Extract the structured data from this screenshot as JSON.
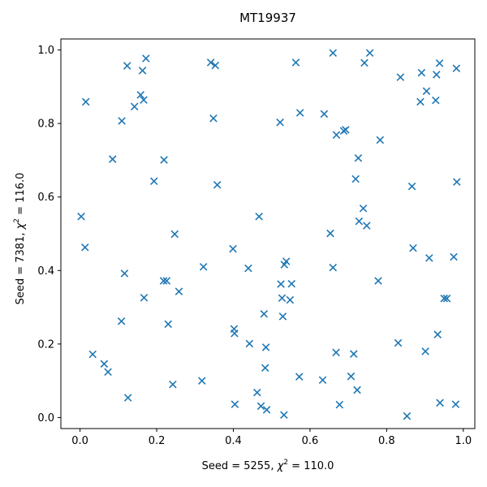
{
  "chart_data": {
    "type": "scatter",
    "title": "MT19937",
    "xlabel": {
      "prefix": "Seed = 5255, ",
      "chi": "χ",
      "sup": "2",
      "suffix": " = 110.0"
    },
    "ylabel": {
      "prefix": "Seed = 7381, ",
      "chi": "χ",
      "sup": "2",
      "suffix": " = 116.0"
    },
    "xlim": [
      -0.05,
      1.03
    ],
    "ylim": [
      -0.03,
      1.03
    ],
    "xticks": [
      0.0,
      0.2,
      0.4,
      0.6,
      0.8,
      1.0
    ],
    "yticks": [
      0.0,
      0.2,
      0.4,
      0.6,
      0.8,
      1.0
    ],
    "xtick_labels": [
      "0.0",
      "0.2",
      "0.4",
      "0.6",
      "0.8",
      "1.0"
    ],
    "ytick_labels": [
      "0.0",
      "0.2",
      "0.4",
      "0.6",
      "0.8",
      "1.0"
    ],
    "marker": "x",
    "color": "#1f77b4",
    "grid": false,
    "points": [
      [
        0.003,
        0.547
      ],
      [
        0.013,
        0.463
      ],
      [
        0.015,
        0.859
      ],
      [
        0.033,
        0.172
      ],
      [
        0.063,
        0.146
      ],
      [
        0.073,
        0.124
      ],
      [
        0.085,
        0.703
      ],
      [
        0.108,
        0.262
      ],
      [
        0.109,
        0.807
      ],
      [
        0.116,
        0.392
      ],
      [
        0.123,
        0.957
      ],
      [
        0.125,
        0.054
      ],
      [
        0.142,
        0.846
      ],
      [
        0.158,
        0.878
      ],
      [
        0.163,
        0.944
      ],
      [
        0.166,
        0.864
      ],
      [
        0.167,
        0.326
      ],
      [
        0.172,
        0.977
      ],
      [
        0.193,
        0.643
      ],
      [
        0.218,
        0.372
      ],
      [
        0.219,
        0.701
      ],
      [
        0.226,
        0.372
      ],
      [
        0.23,
        0.254
      ],
      [
        0.242,
        0.09
      ],
      [
        0.247,
        0.499
      ],
      [
        0.258,
        0.343
      ],
      [
        0.318,
        0.1
      ],
      [
        0.322,
        0.41
      ],
      [
        0.341,
        0.966
      ],
      [
        0.348,
        0.814
      ],
      [
        0.353,
        0.958
      ],
      [
        0.358,
        0.633
      ],
      [
        0.399,
        0.459
      ],
      [
        0.402,
        0.241
      ],
      [
        0.403,
        0.229
      ],
      [
        0.404,
        0.036
      ],
      [
        0.439,
        0.406
      ],
      [
        0.442,
        0.201
      ],
      [
        0.462,
        0.068
      ],
      [
        0.467,
        0.547
      ],
      [
        0.472,
        0.031
      ],
      [
        0.48,
        0.282
      ],
      [
        0.483,
        0.135
      ],
      [
        0.485,
        0.191
      ],
      [
        0.487,
        0.021
      ],
      [
        0.522,
        0.803
      ],
      [
        0.524,
        0.363
      ],
      [
        0.527,
        0.325
      ],
      [
        0.529,
        0.275
      ],
      [
        0.532,
        0.007
      ],
      [
        0.533,
        0.416
      ],
      [
        0.538,
        0.425
      ],
      [
        0.548,
        0.32
      ],
      [
        0.552,
        0.364
      ],
      [
        0.563,
        0.966
      ],
      [
        0.572,
        0.111
      ],
      [
        0.574,
        0.829
      ],
      [
        0.633,
        0.102
      ],
      [
        0.637,
        0.826
      ],
      [
        0.653,
        0.501
      ],
      [
        0.66,
        0.408
      ],
      [
        0.66,
        0.992
      ],
      [
        0.668,
        0.177
      ],
      [
        0.669,
        0.769
      ],
      [
        0.677,
        0.035
      ],
      [
        0.688,
        0.78
      ],
      [
        0.693,
        0.783
      ],
      [
        0.707,
        0.112
      ],
      [
        0.714,
        0.173
      ],
      [
        0.719,
        0.649
      ],
      [
        0.723,
        0.075
      ],
      [
        0.726,
        0.706
      ],
      [
        0.728,
        0.534
      ],
      [
        0.739,
        0.569
      ],
      [
        0.742,
        0.965
      ],
      [
        0.748,
        0.522
      ],
      [
        0.756,
        0.992
      ],
      [
        0.778,
        0.372
      ],
      [
        0.783,
        0.755
      ],
      [
        0.83,
        0.203
      ],
      [
        0.836,
        0.926
      ],
      [
        0.853,
        0.004
      ],
      [
        0.866,
        0.629
      ],
      [
        0.869,
        0.461
      ],
      [
        0.888,
        0.859
      ],
      [
        0.891,
        0.938
      ],
      [
        0.901,
        0.18
      ],
      [
        0.904,
        0.888
      ],
      [
        0.911,
        0.434
      ],
      [
        0.928,
        0.863
      ],
      [
        0.93,
        0.933
      ],
      [
        0.933,
        0.226
      ],
      [
        0.938,
        0.964
      ],
      [
        0.939,
        0.04
      ],
      [
        0.95,
        0.324
      ],
      [
        0.957,
        0.324
      ],
      [
        0.975,
        0.437
      ],
      [
        0.98,
        0.036
      ],
      [
        0.982,
        0.95
      ],
      [
        0.983,
        0.641
      ]
    ]
  }
}
